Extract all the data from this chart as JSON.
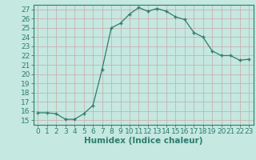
{
  "xlabel": "Humidex (Indice chaleur)",
  "x_values": [
    0,
    1,
    2,
    3,
    4,
    5,
    6,
    7,
    8,
    9,
    10,
    11,
    12,
    13,
    14,
    15,
    16,
    17,
    18,
    19,
    20,
    21,
    22,
    23
  ],
  "y_values": [
    15.8,
    15.8,
    15.7,
    15.1,
    15.1,
    15.7,
    16.6,
    20.5,
    25.0,
    25.5,
    26.5,
    27.2,
    26.8,
    27.1,
    26.8,
    26.2,
    25.9,
    24.5,
    24.0,
    22.5,
    22.0,
    22.0,
    21.5,
    21.6
  ],
  "line_color": "#2e7d6e",
  "marker": "+",
  "bg_color": "#c5e8e0",
  "grid_color": "#c8a8a8",
  "ylim": [
    14.5,
    27.5
  ],
  "xlim": [
    -0.5,
    23.5
  ],
  "yticks": [
    15,
    16,
    17,
    18,
    19,
    20,
    21,
    22,
    23,
    24,
    25,
    26,
    27
  ],
  "xticks": [
    0,
    1,
    2,
    3,
    4,
    5,
    6,
    7,
    8,
    9,
    10,
    11,
    12,
    13,
    14,
    15,
    16,
    17,
    18,
    19,
    20,
    21,
    22,
    23
  ],
  "tick_fontsize": 6.5,
  "label_fontsize": 7.5
}
